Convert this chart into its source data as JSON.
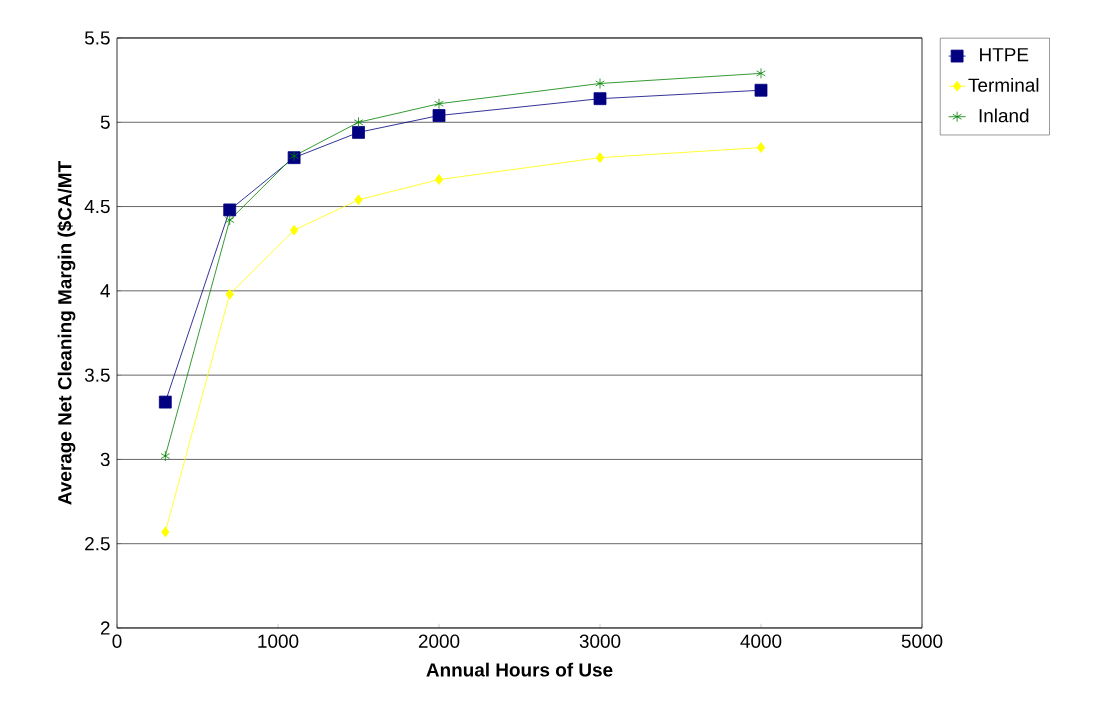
{
  "chart_data": {
    "type": "line",
    "xlabel": "Annual Hours of Use",
    "ylabel": "Average Net Cleaning Margin ($CA/MT",
    "x": [
      300,
      700,
      1100,
      1500,
      2000,
      3000,
      4000
    ],
    "series": [
      {
        "name": "HTPE",
        "color": "#000080",
        "marker": "square",
        "values": [
          3.34,
          4.48,
          4.79,
          4.94,
          5.04,
          5.14,
          5.19
        ]
      },
      {
        "name": "Terminal",
        "color": "#ffff00",
        "marker": "diamond",
        "values": [
          2.57,
          3.98,
          4.36,
          4.54,
          4.66,
          4.79,
          4.85
        ]
      },
      {
        "name": "Inland",
        "color": "#008000",
        "marker": "cross",
        "values": [
          3.02,
          4.42,
          4.8,
          5.0,
          5.11,
          5.23,
          5.29
        ]
      }
    ],
    "xlim": [
      0,
      5000
    ],
    "xticks": [
      0,
      1000,
      2000,
      3000,
      4000,
      5000
    ],
    "ylim": [
      2,
      5.5
    ],
    "yticks": [
      2,
      2.5,
      3,
      3.5,
      4,
      4.5,
      5,
      5.5
    ],
    "grid": "y",
    "legend": "right",
    "line_style": "solid"
  }
}
